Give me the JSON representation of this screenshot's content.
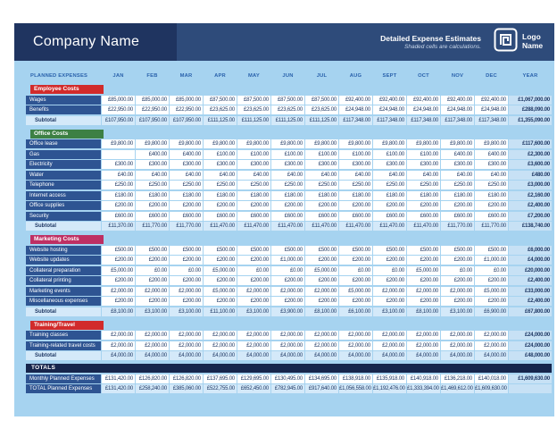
{
  "colors": {
    "page-bg": "#A6D3F0",
    "band-left": "#1F3460",
    "band-right": "#2E4B7A",
    "row-label": "#2E5492",
    "cell-text": "#1F3864",
    "shaded-cell": "#D4E9F9",
    "year-cell": "#C7E1F5",
    "totals-bar": "#16254C",
    "column-head-text": "#2A62AC"
  },
  "header": {
    "company_name": "Company Name",
    "doc_title": "Detailed Expense Estimates",
    "doc_subtitle": "Shaded cells are calculations.",
    "logo_text": "Logo Name"
  },
  "table": {
    "label_header": "PLANNED EXPENSES",
    "months": [
      "JAN",
      "FEB",
      "MAR",
      "APR",
      "MAY",
      "JUN",
      "JUL",
      "AUG",
      "SEPT",
      "OCT",
      "NOV",
      "DEC"
    ],
    "year_header": "YEAR",
    "sections": [
      {
        "title": "Employee Costs",
        "color": "#D12B2B",
        "rows": [
          {
            "label": "Wages",
            "values": [
              "£85,000.00",
              "£85,000.00",
              "£85,000.00",
              "£87,500.00",
              "£87,500.00",
              "£87,500.00",
              "£87,500.00",
              "£92,400.00",
              "£92,400.00",
              "£92,400.00",
              "£92,400.00",
              "£92,400.00"
            ],
            "year": "£1,067,000.00"
          },
          {
            "label": "Benefits",
            "values": [
              "£22,950.00",
              "£22,950.00",
              "£22,950.00",
              "£23,625.00",
              "£23,625.00",
              "£23,625.00",
              "£23,625.00",
              "£24,948.00",
              "£24,948.00",
              "£24,948.00",
              "£24,948.00",
              "£24,948.00"
            ],
            "year": "£288,090.00"
          }
        ],
        "subtotal": {
          "label": "Subtotal",
          "values": [
            "£107,950.00",
            "£107,950.00",
            "£107,950.00",
            "£111,125.00",
            "£111,125.00",
            "£111,125.00",
            "£111,125.00",
            "£117,348.00",
            "£117,348.00",
            "£117,348.00",
            "£117,348.00",
            "£117,348.00"
          ],
          "year": "£1,355,090.00"
        }
      },
      {
        "title": "Office Costs",
        "color": "#3D8044",
        "rows": [
          {
            "label": "Office lease",
            "values": [
              "£9,800.00",
              "£9,800.00",
              "£9,800.00",
              "£9,800.00",
              "£9,800.00",
              "£9,800.00",
              "£9,800.00",
              "£9,800.00",
              "£9,800.00",
              "£9,800.00",
              "£9,800.00",
              "£9,800.00"
            ],
            "year": "£117,600.00"
          },
          {
            "label": "Gas",
            "values": [
              "",
              "£400.00",
              "£400.00",
              "£100.00",
              "£100.00",
              "£100.00",
              "£100.00",
              "£100.00",
              "£100.00",
              "£100.00",
              "£400.00",
              "£400.00"
            ],
            "year": "£2,300.00"
          },
          {
            "label": "Electricity",
            "values": [
              "£300.00",
              "£300.00",
              "£300.00",
              "£300.00",
              "£300.00",
              "£300.00",
              "£300.00",
              "£300.00",
              "£300.00",
              "£300.00",
              "£300.00",
              "£300.00"
            ],
            "year": "£3,600.00"
          },
          {
            "label": "Water",
            "values": [
              "£40.00",
              "£40.00",
              "£40.00",
              "£40.00",
              "£40.00",
              "£40.00",
              "£40.00",
              "£40.00",
              "£40.00",
              "£40.00",
              "£40.00",
              "£40.00"
            ],
            "year": "£480.00"
          },
          {
            "label": "Telephone",
            "values": [
              "£250.00",
              "£250.00",
              "£250.00",
              "£250.00",
              "£250.00",
              "£250.00",
              "£250.00",
              "£250.00",
              "£250.00",
              "£250.00",
              "£250.00",
              "£250.00"
            ],
            "year": "£3,000.00"
          },
          {
            "label": "Internet access",
            "values": [
              "£180.00",
              "£180.00",
              "£180.00",
              "£180.00",
              "£180.00",
              "£180.00",
              "£180.00",
              "£180.00",
              "£180.00",
              "£180.00",
              "£180.00",
              "£180.00"
            ],
            "year": "£2,160.00"
          },
          {
            "label": "Office supplies",
            "values": [
              "£200.00",
              "£200.00",
              "£200.00",
              "£200.00",
              "£200.00",
              "£200.00",
              "£200.00",
              "£200.00",
              "£200.00",
              "£200.00",
              "£200.00",
              "£200.00"
            ],
            "year": "£2,400.00"
          },
          {
            "label": "Security",
            "values": [
              "£600.00",
              "£600.00",
              "£600.00",
              "£600.00",
              "£600.00",
              "£600.00",
              "£600.00",
              "£600.00",
              "£600.00",
              "£600.00",
              "£600.00",
              "£600.00"
            ],
            "year": "£7,200.00"
          }
        ],
        "subtotal": {
          "label": "Subtotal",
          "values": [
            "£11,370.00",
            "£11,770.00",
            "£11,770.00",
            "£11,470.00",
            "£11,470.00",
            "£11,470.00",
            "£11,470.00",
            "£11,470.00",
            "£11,470.00",
            "£11,470.00",
            "£11,770.00",
            "£11,770.00"
          ],
          "year": "£138,740.00"
        }
      },
      {
        "title": "Marketing Costs",
        "color": "#BE2F63",
        "rows": [
          {
            "label": "Website hosting",
            "values": [
              "£500.00",
              "£500.00",
              "£500.00",
              "£500.00",
              "£500.00",
              "£500.00",
              "£500.00",
              "£500.00",
              "£500.00",
              "£500.00",
              "£500.00",
              "£500.00"
            ],
            "year": "£6,000.00"
          },
          {
            "label": "Website updates",
            "values": [
              "£200.00",
              "£200.00",
              "£200.00",
              "£200.00",
              "£200.00",
              "£1,000.00",
              "£200.00",
              "£200.00",
              "£200.00",
              "£200.00",
              "£200.00",
              "£1,000.00"
            ],
            "year": "£4,000.00"
          },
          {
            "label": "Collateral preparation",
            "values": [
              "£5,000.00",
              "£0.00",
              "£0.00",
              "£5,000.00",
              "£0.00",
              "£0.00",
              "£5,000.00",
              "£0.00",
              "£0.00",
              "£5,000.00",
              "£0.00",
              "£0.00"
            ],
            "year": "£20,000.00"
          },
          {
            "label": "Collateral printing",
            "values": [
              "£200.00",
              "£200.00",
              "£200.00",
              "£200.00",
              "£200.00",
              "£200.00",
              "£200.00",
              "£200.00",
              "£200.00",
              "£200.00",
              "£200.00",
              "£200.00"
            ],
            "year": "£2,400.00"
          },
          {
            "label": "Marketing events",
            "values": [
              "£2,000.00",
              "£2,000.00",
              "£2,000.00",
              "£5,000.00",
              "£2,000.00",
              "£2,000.00",
              "£2,000.00",
              "£5,000.00",
              "£2,000.00",
              "£2,000.00",
              "£2,000.00",
              "£5,000.00"
            ],
            "year": "£33,000.00"
          },
          {
            "label": "Miscellaneous expenses",
            "values": [
              "£200.00",
              "£200.00",
              "£200.00",
              "£200.00",
              "£200.00",
              "£200.00",
              "£200.00",
              "£200.00",
              "£200.00",
              "£200.00",
              "£200.00",
              "£200.00"
            ],
            "year": "£2,400.00"
          }
        ],
        "subtotal": {
          "label": "Subtotal",
          "values": [
            "£8,100.00",
            "£3,100.00",
            "£3,100.00",
            "£11,100.00",
            "£3,100.00",
            "£3,900.00",
            "£8,100.00",
            "£6,100.00",
            "£3,100.00",
            "£8,100.00",
            "£3,100.00",
            "£6,900.00"
          ],
          "year": "£67,800.00"
        }
      },
      {
        "title": "Training/Travel",
        "color": "#D12B2B",
        "rows": [
          {
            "label": "Training classes",
            "values": [
              "£2,000.00",
              "£2,000.00",
              "£2,000.00",
              "£2,000.00",
              "£2,000.00",
              "£2,000.00",
              "£2,000.00",
              "£2,000.00",
              "£2,000.00",
              "£2,000.00",
              "£2,000.00",
              "£2,000.00"
            ],
            "year": "£24,000.00"
          },
          {
            "label": "Training-related travel costs",
            "values": [
              "£2,000.00",
              "£2,000.00",
              "£2,000.00",
              "£2,000.00",
              "£2,000.00",
              "£2,000.00",
              "£2,000.00",
              "£2,000.00",
              "£2,000.00",
              "£2,000.00",
              "£2,000.00",
              "£2,000.00"
            ],
            "year": "£24,000.00"
          }
        ],
        "subtotal": {
          "label": "Subtotal",
          "values": [
            "£4,000.00",
            "£4,000.00",
            "£4,000.00",
            "£4,000.00",
            "£4,000.00",
            "£4,000.00",
            "£4,000.00",
            "£4,000.00",
            "£4,000.00",
            "£4,000.00",
            "£4,000.00",
            "£4,000.00"
          ],
          "year": "£48,000.00"
        }
      }
    ],
    "totals": {
      "title": "TOTALS",
      "rows": [
        {
          "label": "Monthly Planned Expenses",
          "shaded": false,
          "values": [
            "£131,420.00",
            "£126,820.00",
            "£126,820.00",
            "£137,695.00",
            "£129,695.00",
            "£130,495.00",
            "£134,695.00",
            "£138,918.00",
            "£135,918.00",
            "£140,918.00",
            "£136,218.00",
            "£140,018.00"
          ],
          "year": "£1,609,630.00"
        },
        {
          "label": "TOTAL Planned Expenses",
          "shaded": true,
          "values": [
            "£131,420.00",
            "£258,240.00",
            "£385,060.00",
            "£522,755.00",
            "£652,450.00",
            "£782,945.00",
            "£917,640.00",
            "£1,056,558.00",
            "£1,192,476.00",
            "£1,333,394.00",
            "£1,469,612.00",
            "£1,609,630.00"
          ],
          "year": ""
        }
      ]
    }
  }
}
